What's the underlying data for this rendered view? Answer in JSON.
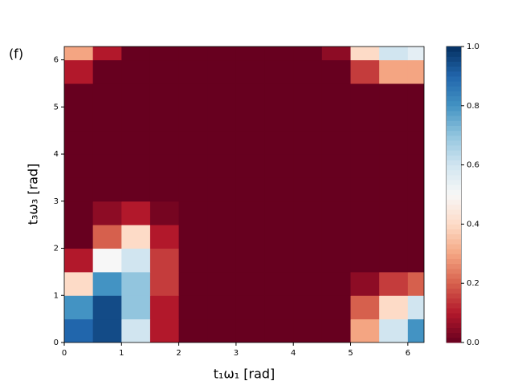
{
  "chart_data": {
    "type": "heatmap",
    "panel_label": "(f)",
    "xlabel": "t₁ω₁ [rad]",
    "ylabel": "t₃ω₃ [rad]",
    "x": [
      0.25,
      0.75,
      1.25,
      1.75,
      2.25,
      2.75,
      3.25,
      3.75,
      4.25,
      4.75,
      5.25,
      5.75,
      6.25
    ],
    "y": [
      0.25,
      0.75,
      1.25,
      1.75,
      2.25,
      2.75,
      3.25,
      3.75,
      4.25,
      4.75,
      5.25,
      5.75,
      6.25
    ],
    "z": [
      [
        0.9,
        0.95,
        0.6,
        0.1,
        0,
        0,
        0,
        0,
        0,
        0,
        0.3,
        0.6,
        0.8
      ],
      [
        0.8,
        0.95,
        0.7,
        0.1,
        0,
        0,
        0,
        0,
        0,
        0,
        0.2,
        0.4,
        0.6
      ],
      [
        0.4,
        0.8,
        0.7,
        0.15,
        0,
        0,
        0,
        0,
        0,
        0,
        0.05,
        0.15,
        0.2
      ],
      [
        0.1,
        0.5,
        0.6,
        0.15,
        0,
        0,
        0,
        0,
        0,
        0,
        0,
        0,
        0
      ],
      [
        0,
        0.2,
        0.4,
        0.1,
        0,
        0,
        0,
        0,
        0,
        0,
        0,
        0,
        0
      ],
      [
        0,
        0.05,
        0.1,
        0.02,
        0,
        0,
        0,
        0,
        0,
        0,
        0,
        0,
        0
      ],
      [
        0,
        0,
        0,
        0,
        0,
        0,
        0,
        0,
        0,
        0,
        0,
        0,
        0
      ],
      [
        0,
        0,
        0,
        0,
        0,
        0,
        0,
        0,
        0,
        0,
        0,
        0,
        0
      ],
      [
        0,
        0,
        0,
        0,
        0,
        0,
        0,
        0,
        0,
        0,
        0,
        0,
        0
      ],
      [
        0,
        0,
        0,
        0,
        0,
        0,
        0,
        0,
        0,
        0,
        0,
        0,
        0
      ],
      [
        0,
        0,
        0,
        0,
        0,
        0,
        0,
        0,
        0,
        0,
        0,
        0,
        0
      ],
      [
        0.1,
        0,
        0,
        0,
        0,
        0,
        0,
        0,
        0,
        0,
        0.15,
        0.3,
        0.3
      ],
      [
        0.3,
        0.1,
        0,
        0,
        0,
        0,
        0,
        0,
        0,
        0.05,
        0.4,
        0.6,
        0.55
      ]
    ],
    "xlim": [
      0,
      6.283
    ],
    "ylim": [
      0,
      6.283
    ],
    "xticks": [
      0,
      1,
      2,
      3,
      4,
      5,
      6
    ],
    "yticks": [
      0,
      1,
      2,
      3,
      4,
      5,
      6
    ],
    "clim": [
      0,
      1
    ],
    "cticks": [
      0.0,
      0.2,
      0.4,
      0.6,
      0.8,
      1.0
    ],
    "colormap": [
      "#67001f",
      "#b2182b",
      "#d6604d",
      "#f4a582",
      "#fddbc7",
      "#f7f7f7",
      "#d1e5f0",
      "#92c5de",
      "#4393c3",
      "#2166ac",
      "#053061"
    ]
  }
}
